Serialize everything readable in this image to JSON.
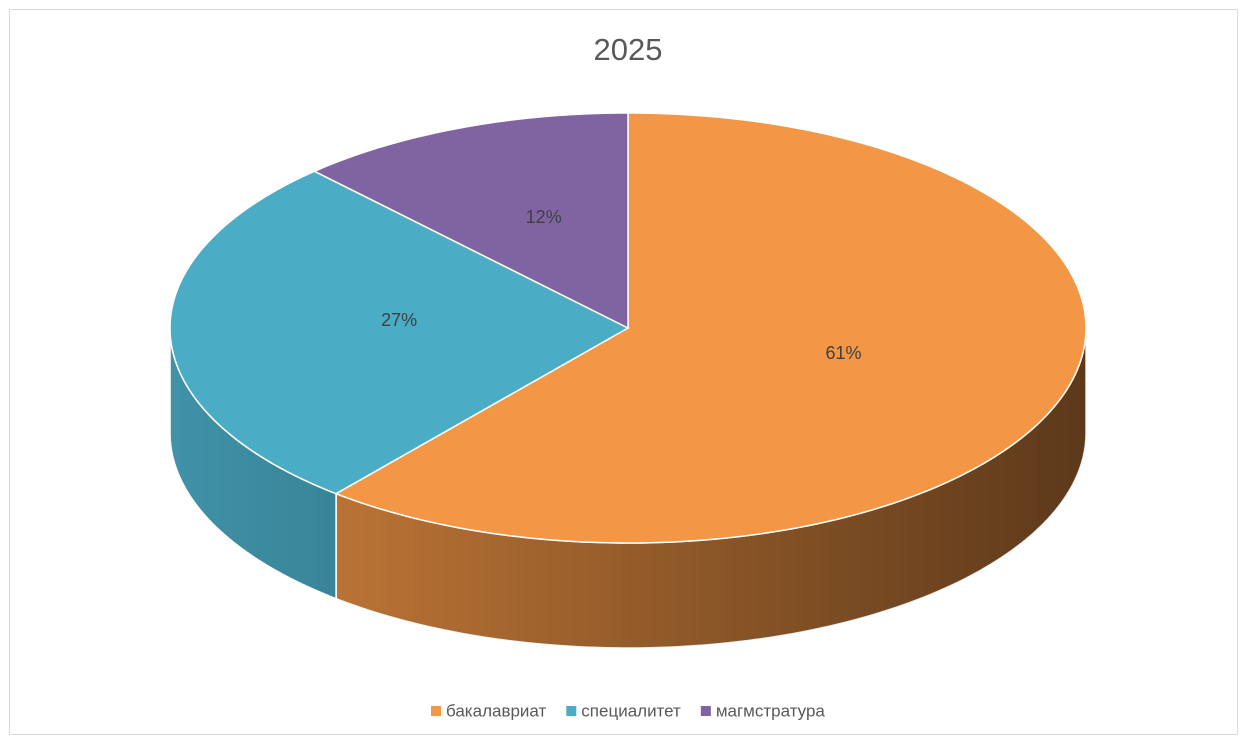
{
  "chart_data": {
    "type": "pie",
    "title": "2025",
    "categories": [
      "бакалавриат",
      "специалитет",
      "магмстратура"
    ],
    "values": [
      61,
      27,
      12
    ],
    "value_labels": [
      "61%",
      "27%",
      "12%"
    ],
    "colors": [
      "#f39645",
      "#4bacc6",
      "#8064a2"
    ],
    "legend": "bottom"
  }
}
